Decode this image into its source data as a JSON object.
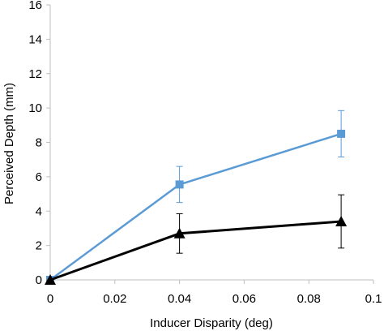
{
  "chart_data": {
    "type": "line",
    "title": "",
    "xlabel": "Inducer Disparity (deg)",
    "ylabel": "Perceived Depth (mm)",
    "xlim": [
      0,
      0.1
    ],
    "ylim": [
      0,
      16
    ],
    "xticks": [
      0,
      0.02,
      0.04,
      0.06,
      0.08,
      0.1
    ],
    "xtick_labels": [
      "0",
      "0.02",
      "0.04",
      "0.06",
      "0.08",
      "0.1"
    ],
    "yticks": [
      0,
      2,
      4,
      6,
      8,
      10,
      12,
      14,
      16
    ],
    "ytick_labels": [
      "0",
      "2",
      "4",
      "6",
      "8",
      "10",
      "12",
      "14",
      "16"
    ],
    "grid": false,
    "legend": "none",
    "series": [
      {
        "marker": "square",
        "color": "#5b9bd5",
        "x": [
          0,
          0.04,
          0.09
        ],
        "y": [
          0,
          5.55,
          8.5
        ],
        "error": [
          0,
          1.05,
          1.35
        ]
      },
      {
        "marker": "triangle",
        "color": "#000000",
        "x": [
          0,
          0.04,
          0.09
        ],
        "y": [
          0,
          2.7,
          3.4
        ],
        "error": [
          0,
          1.15,
          1.55
        ]
      }
    ]
  }
}
